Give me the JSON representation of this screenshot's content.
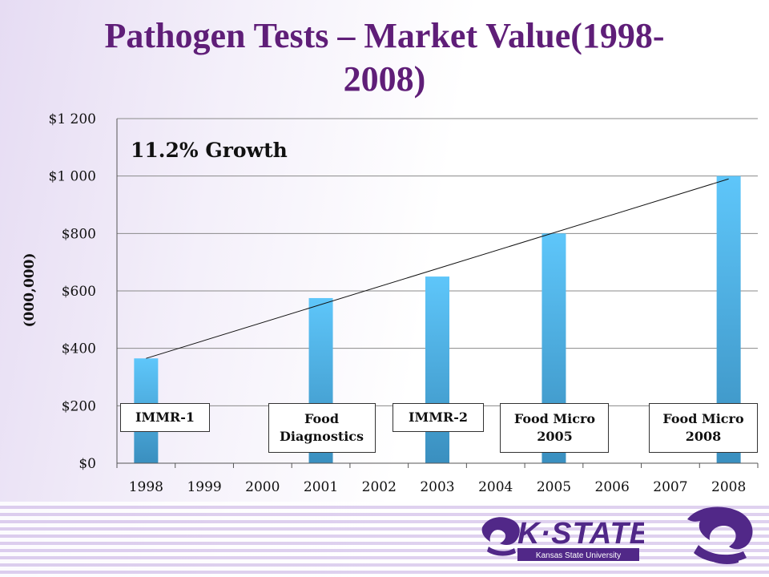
{
  "title_lines": [
    "Pathogen Tests – Market Value(1998-",
    "2008)"
  ],
  "chart_data": {
    "type": "bar",
    "categories": [
      "1998",
      "1999",
      "2000",
      "2001",
      "2002",
      "2003",
      "2004",
      "2005",
      "2006",
      "2007",
      "2008"
    ],
    "values": [
      365,
      null,
      null,
      575,
      null,
      650,
      null,
      800,
      null,
      null,
      1000
    ],
    "ylabel": "(000,000)",
    "ylim": [
      0,
      1200
    ],
    "yticks": [
      0,
      200,
      400,
      600,
      800,
      1000,
      1200
    ],
    "ytick_labels": [
      "$0",
      "$200",
      "$400",
      "$600",
      "$800",
      "$1 000",
      "$1 200"
    ],
    "grid": true,
    "bar_color_top": "#5ec6fa",
    "bar_color_bottom": "#3a8fbf",
    "trendline": {
      "from": [
        "1998",
        365
      ],
      "to": [
        "2008",
        990
      ]
    },
    "annotations": {
      "growth": "11.2% Growth",
      "callouts": [
        {
          "category": "1998",
          "lines": [
            "IMMR-1"
          ]
        },
        {
          "category": "2001",
          "lines": [
            "Food",
            "Diagnostics"
          ]
        },
        {
          "category": "2003",
          "lines": [
            "IMMR-2"
          ]
        },
        {
          "category": "2005",
          "lines": [
            "Food Micro",
            "2005"
          ]
        },
        {
          "category": "2008",
          "lines": [
            "Food Micro",
            "2008"
          ]
        }
      ]
    }
  },
  "footer": {
    "logo_text": "K·STATE",
    "logo_subtext": "Kansas State University",
    "brand_color": "#512888"
  }
}
